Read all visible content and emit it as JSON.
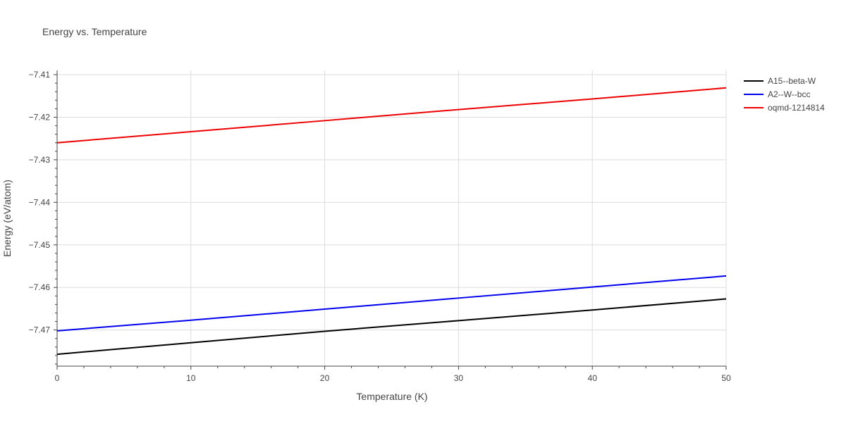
{
  "chart_data": {
    "type": "line",
    "title": "Energy vs. Temperature",
    "xlabel": "Temperature (K)",
    "ylabel": "Energy (eV/atom)",
    "xlim": [
      0,
      50
    ],
    "ylim": [
      -7.4785,
      -7.409
    ],
    "x_ticks": [
      0,
      10,
      20,
      30,
      40,
      50
    ],
    "x_tick_labels": [
      "0",
      "10",
      "20",
      "30",
      "40",
      "50"
    ],
    "y_ticks": [
      -7.41,
      -7.42,
      -7.43,
      -7.44,
      -7.45,
      -7.46,
      -7.47
    ],
    "y_tick_labels": [
      "−7.41",
      "−7.42",
      "−7.43",
      "−7.44",
      "−7.45",
      "−7.46",
      "−7.47"
    ],
    "grid": true,
    "legend_position": "top-right",
    "series": [
      {
        "name": "A15--beta-W",
        "color": "#000000",
        "x": [
          0,
          10,
          20,
          30,
          40,
          50
        ],
        "y": [
          -7.4757,
          -7.473,
          -7.4703,
          -7.4678,
          -7.4653,
          -7.4627
        ]
      },
      {
        "name": "A2--W--bcc",
        "color": "#0000ee",
        "x": [
          0,
          10,
          20,
          30,
          40,
          50
        ],
        "y": [
          -7.4702,
          -7.4677,
          -7.4651,
          -7.4625,
          -7.4599,
          -7.4573
        ]
      },
      {
        "name": "oqmd-1214814",
        "color": "#ee0000",
        "x": [
          0,
          10,
          20,
          30,
          40,
          50
        ],
        "y": [
          -7.426,
          -7.4234,
          -7.4208,
          -7.4182,
          -7.4157,
          -7.4131
        ]
      }
    ]
  }
}
